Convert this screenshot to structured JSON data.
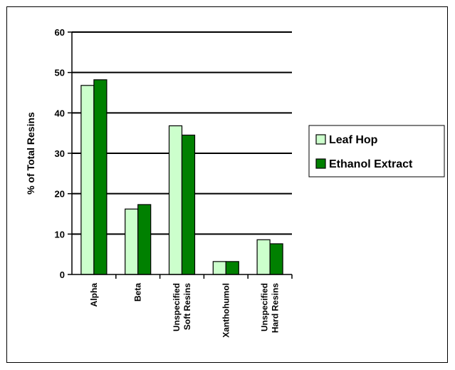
{
  "chart_data": {
    "type": "bar",
    "categories": [
      "Alpha",
      "Beta",
      "Unspecified Soft Resins",
      "Xanthohumol",
      "Unspecified Hard Resins"
    ],
    "category_lines": [
      [
        "Alpha"
      ],
      [
        "Beta"
      ],
      [
        "Unspecified",
        "Soft Resins"
      ],
      [
        "Xanthohumol"
      ],
      [
        "Unspecified",
        "Hard Resins"
      ]
    ],
    "series": [
      {
        "name": "Leaf Hop",
        "values": [
          46.8,
          16.2,
          36.8,
          3.2,
          8.6
        ],
        "color": "#ccffcc"
      },
      {
        "name": "Ethanol Extract",
        "values": [
          48.2,
          17.3,
          34.5,
          3.2,
          7.6
        ],
        "color": "#008000"
      }
    ],
    "ylabel": "% of Total Resins",
    "ylim": [
      0,
      60
    ],
    "yticks": [
      0,
      10,
      20,
      30,
      40,
      50,
      60
    ],
    "grid": true,
    "legend": "right"
  }
}
